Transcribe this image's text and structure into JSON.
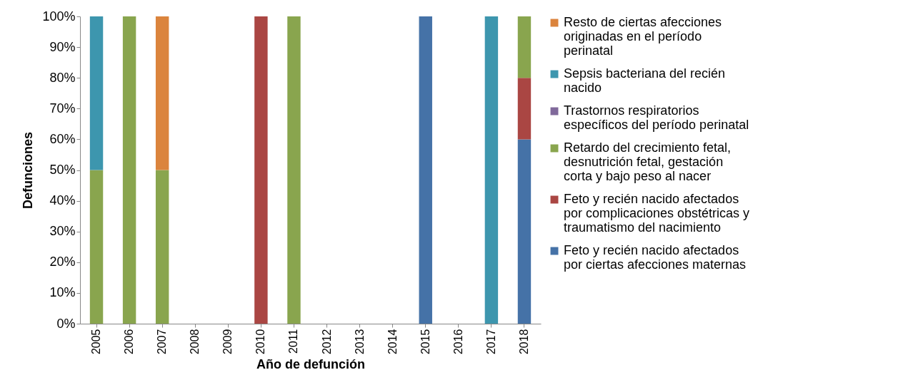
{
  "chart_data": {
    "type": "bar",
    "stacked": true,
    "xlabel": "Año de defunción",
    "ylabel": "Defunciones",
    "categories": [
      "2005",
      "2006",
      "2007",
      "2008",
      "2009",
      "2010",
      "2011",
      "2012",
      "2013",
      "2014",
      "2015",
      "2016",
      "2017",
      "2018"
    ],
    "series": [
      {
        "name": "Feto y recién nacido afectados por ciertas afecciones maternas",
        "color": "#4572a7",
        "values": [
          null,
          null,
          null,
          null,
          null,
          null,
          null,
          null,
          null,
          null,
          100,
          null,
          null,
          60
        ]
      },
      {
        "name": "Feto y recién nacido afectados por complicaciones obstétricas y traumatismo del nacimiento",
        "color": "#aa4643",
        "values": [
          null,
          null,
          null,
          null,
          null,
          100,
          null,
          null,
          null,
          null,
          null,
          null,
          null,
          20
        ]
      },
      {
        "name": "Retardo del crecimiento fetal, desnutrición fetal, gestación corta y bajo peso al nacer",
        "color": "#89a54e",
        "values": [
          50,
          100,
          50,
          null,
          null,
          null,
          100,
          null,
          null,
          null,
          null,
          null,
          null,
          20
        ]
      },
      {
        "name": "Trastornos respiratorios específicos del período perinatal",
        "color": "#80699b",
        "values": [
          null,
          null,
          null,
          null,
          null,
          null,
          null,
          null,
          null,
          null,
          null,
          null,
          null,
          null
        ]
      },
      {
        "name": "Sepsis bacteriana del recién nacido",
        "color": "#3d96ae",
        "values": [
          50,
          null,
          null,
          null,
          null,
          null,
          null,
          null,
          null,
          null,
          null,
          null,
          100,
          null
        ]
      },
      {
        "name": "Resto de ciertas afecciones originadas en el período perinatal",
        "color": "#db843d",
        "values": [
          null,
          null,
          50,
          null,
          null,
          null,
          null,
          null,
          null,
          null,
          null,
          null,
          null,
          null
        ]
      }
    ],
    "ylim": [
      0,
      100
    ],
    "yticks": [
      {
        "value": 0,
        "label": "0%"
      },
      {
        "value": 10,
        "label": "10%"
      },
      {
        "value": 20,
        "label": "20%"
      },
      {
        "value": 30,
        "label": "30%"
      },
      {
        "value": 40,
        "label": "40%"
      },
      {
        "value": 50,
        "label": "50%"
      },
      {
        "value": 60,
        "label": "60%"
      },
      {
        "value": 70,
        "label": "70%"
      },
      {
        "value": 80,
        "label": "80%"
      },
      {
        "value": 90,
        "label": "90%"
      },
      {
        "value": 100,
        "label": "100%"
      }
    ],
    "legend": "right",
    "grid": false
  }
}
